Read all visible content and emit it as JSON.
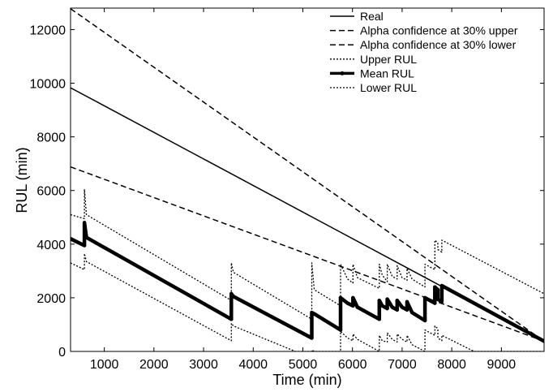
{
  "chart_data": {
    "type": "line",
    "title": "",
    "xlabel": "Time (min)",
    "ylabel": "RUL (min)",
    "xlim": [
      320,
      9860
    ],
    "ylim": [
      0,
      12800
    ],
    "xticks": [
      1000,
      2000,
      3000,
      4000,
      5000,
      6000,
      7000,
      8000,
      9000
    ],
    "yticks": [
      0,
      2000,
      4000,
      6000,
      8000,
      10000,
      12000
    ],
    "grid": false,
    "legend_position": "top-right",
    "series": [
      {
        "name": "Real",
        "style": "solid",
        "points": [
          [
            320,
            9830
          ],
          [
            9860,
            380
          ]
        ]
      },
      {
        "name": "Alpha confidence at 30% upper",
        "style": "dashed",
        "points": [
          [
            320,
            12780
          ],
          [
            9860,
            380
          ]
        ]
      },
      {
        "name": "Alpha confidence at 30% lower",
        "style": "dashed",
        "points": [
          [
            320,
            6880
          ],
          [
            9860,
            380
          ]
        ]
      },
      {
        "name": "Upper RUL",
        "style": "dotted",
        "points": [
          [
            320,
            5100
          ],
          [
            600,
            4950
          ],
          [
            600,
            6050
          ],
          [
            640,
            5100
          ],
          [
            3560,
            1900
          ],
          [
            3560,
            3300
          ],
          [
            3600,
            2950
          ],
          [
            5180,
            1200
          ],
          [
            5180,
            3300
          ],
          [
            5230,
            2300
          ],
          [
            5760,
            1700
          ],
          [
            5760,
            3250
          ],
          [
            5900,
            2700
          ],
          [
            6010,
            2550
          ],
          [
            6010,
            3250
          ],
          [
            6100,
            2750
          ],
          [
            6540,
            2350
          ],
          [
            6540,
            3250
          ],
          [
            6600,
            2850
          ],
          [
            6700,
            2600
          ],
          [
            6700,
            3250
          ],
          [
            6800,
            2800
          ],
          [
            6900,
            2700
          ],
          [
            6900,
            3200
          ],
          [
            7000,
            2750
          ],
          [
            7100,
            2650
          ],
          [
            7100,
            3100
          ],
          [
            7200,
            2700
          ],
          [
            7460,
            2400
          ],
          [
            7460,
            3250
          ],
          [
            7660,
            3050
          ],
          [
            7660,
            4150
          ],
          [
            7720,
            4050
          ],
          [
            7720,
            3800
          ],
          [
            7800,
            3700
          ],
          [
            7800,
            4150
          ],
          [
            9860,
            2150
          ]
        ]
      },
      {
        "name": "Mean RUL",
        "style": "solid-thick-markers",
        "points": [
          [
            320,
            4200
          ],
          [
            600,
            3950
          ],
          [
            600,
            4800
          ],
          [
            640,
            4250
          ],
          [
            3560,
            1200
          ],
          [
            3560,
            2150
          ],
          [
            3600,
            2050
          ],
          [
            5180,
            500
          ],
          [
            5180,
            1450
          ],
          [
            5230,
            1400
          ],
          [
            5760,
            800
          ],
          [
            5760,
            2000
          ],
          [
            5900,
            1800
          ],
          [
            6010,
            1700
          ],
          [
            6010,
            2000
          ],
          [
            6100,
            1650
          ],
          [
            6540,
            1200
          ],
          [
            6540,
            1900
          ],
          [
            6600,
            1700
          ],
          [
            6700,
            1600
          ],
          [
            6700,
            1950
          ],
          [
            6800,
            1650
          ],
          [
            6900,
            1550
          ],
          [
            6900,
            1900
          ],
          [
            7000,
            1650
          ],
          [
            7100,
            1550
          ],
          [
            7100,
            1850
          ],
          [
            7200,
            1450
          ],
          [
            7460,
            1150
          ],
          [
            7460,
            2000
          ],
          [
            7660,
            1800
          ],
          [
            7660,
            2400
          ],
          [
            7720,
            2300
          ],
          [
            7720,
            1950
          ],
          [
            7800,
            1850
          ],
          [
            7800,
            2450
          ],
          [
            9860,
            380
          ]
        ]
      },
      {
        "name": "Lower RUL",
        "style": "dotted",
        "points": [
          [
            320,
            3300
          ],
          [
            600,
            3050
          ],
          [
            600,
            3650
          ],
          [
            640,
            3350
          ],
          [
            3560,
            400
          ],
          [
            3560,
            1050
          ],
          [
            3600,
            950
          ],
          [
            4850,
            0
          ],
          [
            5180,
            0
          ],
          [
            5180,
            50
          ],
          [
            5230,
            0
          ],
          [
            5760,
            0
          ],
          [
            5760,
            750
          ],
          [
            5900,
            500
          ],
          [
            6010,
            400
          ],
          [
            6010,
            650
          ],
          [
            6100,
            450
          ],
          [
            6540,
            0
          ],
          [
            6540,
            600
          ],
          [
            6600,
            400
          ],
          [
            6700,
            350
          ],
          [
            6700,
            700
          ],
          [
            6800,
            450
          ],
          [
            6900,
            350
          ],
          [
            6900,
            650
          ],
          [
            7000,
            450
          ],
          [
            7100,
            350
          ],
          [
            7100,
            600
          ],
          [
            7200,
            250
          ],
          [
            7460,
            0
          ],
          [
            7460,
            800
          ],
          [
            7660,
            600
          ],
          [
            7660,
            950
          ],
          [
            7720,
            850
          ],
          [
            7720,
            500
          ],
          [
            7800,
            400
          ],
          [
            7800,
            600
          ],
          [
            8450,
            0
          ],
          [
            9860,
            0
          ]
        ]
      }
    ]
  }
}
